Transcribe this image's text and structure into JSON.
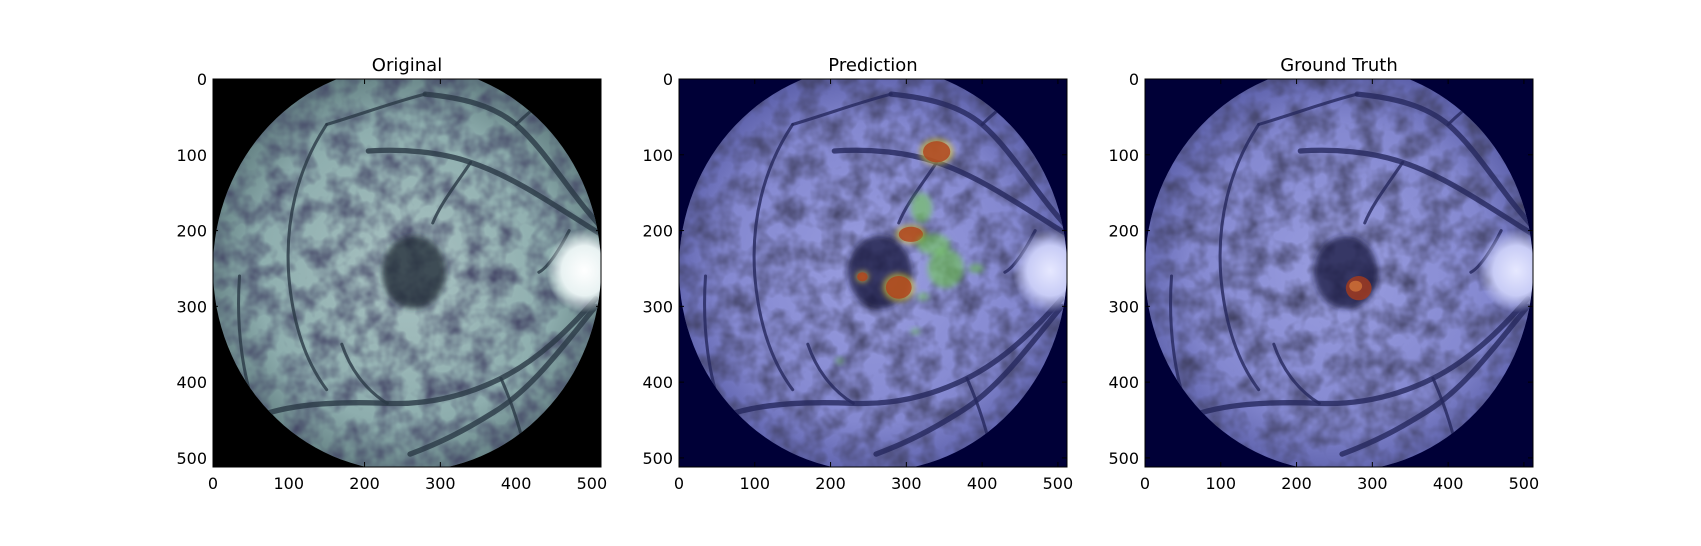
{
  "figure": {
    "panels": [
      {
        "title": "Original",
        "style": "original",
        "overlays": []
      },
      {
        "title": "Prediction",
        "style": "tinted",
        "overlays": [
          {
            "kind": "strong",
            "cx": 340,
            "cy": 96,
            "rx": 18,
            "ry": 14
          },
          {
            "kind": "green",
            "cx": 320,
            "cy": 170,
            "rx": 14,
            "ry": 20
          },
          {
            "kind": "strong",
            "cx": 306,
            "cy": 205,
            "rx": 16,
            "ry": 10
          },
          {
            "kind": "green",
            "cx": 336,
            "cy": 218,
            "rx": 22,
            "ry": 14
          },
          {
            "kind": "green",
            "cx": 352,
            "cy": 250,
            "rx": 24,
            "ry": 26
          },
          {
            "kind": "green",
            "cx": 392,
            "cy": 250,
            "rx": 10,
            "ry": 6
          },
          {
            "kind": "strong",
            "cx": 290,
            "cy": 275,
            "rx": 17,
            "ry": 15
          },
          {
            "kind": "strong",
            "cx": 242,
            "cy": 261,
            "rx": 7,
            "ry": 6
          },
          {
            "kind": "green",
            "cx": 322,
            "cy": 287,
            "rx": 8,
            "ry": 5
          },
          {
            "kind": "green",
            "cx": 312,
            "cy": 333,
            "rx": 6,
            "ry": 4
          },
          {
            "kind": "green",
            "cx": 212,
            "cy": 372,
            "rx": 5,
            "ry": 4
          }
        ]
      },
      {
        "title": "Ground Truth",
        "style": "tinted",
        "overlays": [
          {
            "kind": "lesion",
            "cx": 282,
            "cy": 276,
            "rx": 17,
            "ry": 16
          }
        ]
      }
    ],
    "axis": {
      "xticks": [
        0,
        100,
        200,
        300,
        400,
        500
      ],
      "yticks": [
        0,
        100,
        200,
        300,
        400,
        500
      ],
      "range": [
        0,
        512
      ]
    }
  }
}
